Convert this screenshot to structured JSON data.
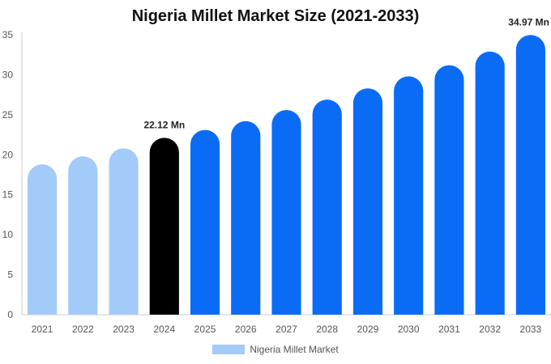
{
  "chart_data": {
    "type": "bar",
    "title": "Nigeria Millet Market Size (2021-2033)",
    "categories": [
      "2021",
      "2022",
      "2023",
      "2024",
      "2025",
      "2026",
      "2027",
      "2028",
      "2029",
      "2030",
      "2031",
      "2032",
      "2033"
    ],
    "series": [
      {
        "name": "Nigeria Millet Market",
        "values": [
          18.8,
          19.8,
          20.8,
          22.12,
          23.1,
          24.2,
          25.6,
          26.9,
          28.3,
          29.8,
          31.2,
          32.9,
          34.97
        ]
      }
    ],
    "ylim": [
      0,
      35
    ],
    "yticks": [
      0,
      5,
      10,
      15,
      20,
      25,
      30,
      35
    ],
    "grid": false,
    "legend": "bottom-center",
    "data_labels": [
      {
        "index": 3,
        "text": "22.12 Mn"
      },
      {
        "index": 12,
        "text": "34.97 Mn"
      }
    ],
    "colors": {
      "historical": "#a2cbfa",
      "current": "#000000",
      "forecast": "#0a6cf5",
      "legend_swatch": "#a2cbfa"
    },
    "bar_color_groups": [
      "historical",
      "historical",
      "historical",
      "current",
      "forecast",
      "forecast",
      "forecast",
      "forecast",
      "forecast",
      "forecast",
      "forecast",
      "forecast",
      "forecast"
    ]
  }
}
